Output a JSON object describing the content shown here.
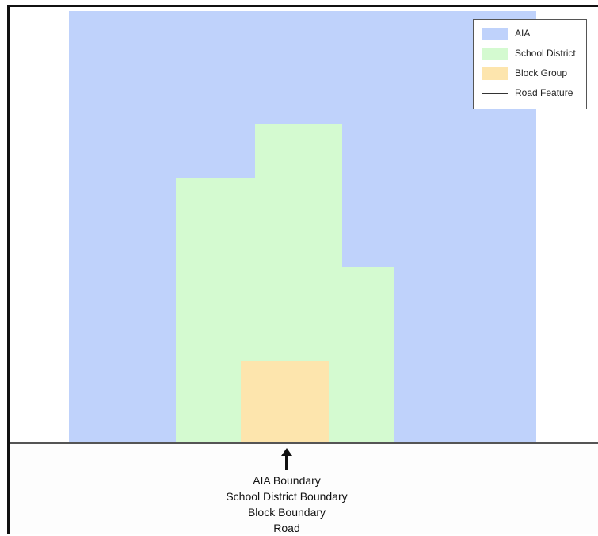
{
  "legend": {
    "items": [
      {
        "label": "AIA",
        "color": "#bfd2fb",
        "kind": "swatch"
      },
      {
        "label": "School District",
        "color": "#d4fad0",
        "kind": "swatch"
      },
      {
        "label": "Block Group",
        "color": "#fde5ad",
        "kind": "swatch"
      },
      {
        "label": "Road Feature",
        "color": "#333333",
        "kind": "line"
      }
    ]
  },
  "annotation": {
    "lines": [
      "AIA Boundary",
      "School District Boundary",
      "Block Boundary",
      "Road"
    ]
  }
}
